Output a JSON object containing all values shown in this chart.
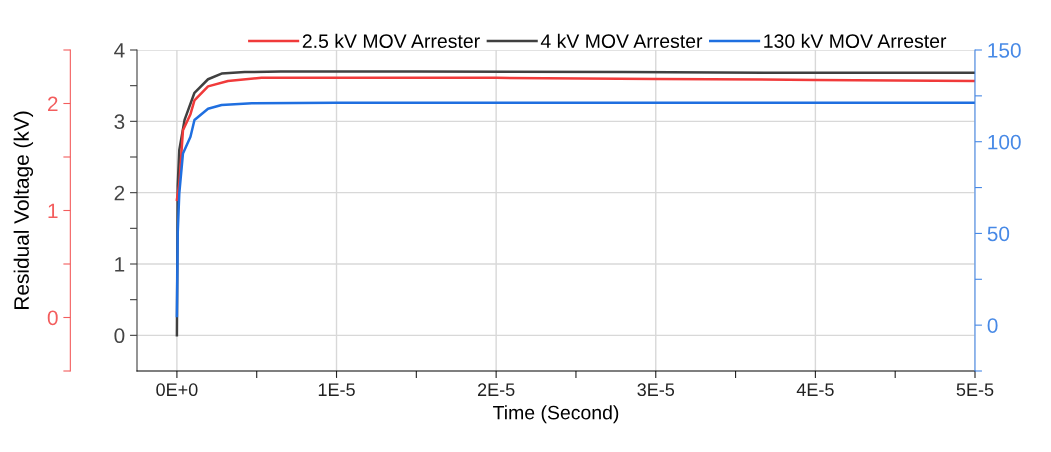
{
  "chart_data": {
    "type": "line",
    "xlabel": "Time (Second)",
    "y2label": "Residual Voltage (kV)",
    "xlim": [
      -2.5e-06,
      5e-05
    ],
    "xticks": [
      {
        "value": 0,
        "label": "0E+0"
      },
      {
        "value": 5e-06,
        "label": null
      },
      {
        "value": 1e-05,
        "label": "1E-5"
      },
      {
        "value": 1.5e-05,
        "label": null
      },
      {
        "value": 2e-05,
        "label": "2E-5"
      },
      {
        "value": 2.5e-05,
        "label": null
      },
      {
        "value": 3e-05,
        "label": "3E-5"
      },
      {
        "value": 3.5e-05,
        "label": null
      },
      {
        "value": 4e-05,
        "label": "4E-5"
      },
      {
        "value": 4.5e-05,
        "label": null
      },
      {
        "value": 5e-05,
        "label": "5E-5"
      }
    ],
    "ylim": [
      -0.5,
      4
    ],
    "yticks": [
      0,
      {
        "value": 0.5,
        "label": null
      },
      1,
      {
        "value": 1.5,
        "label": null
      },
      2,
      {
        "value": 2.5,
        "label": null
      },
      3,
      {
        "value": 3.5,
        "label": null
      },
      4
    ],
    "y2lim": [
      -0.5,
      2.5
    ],
    "y2ticks": [
      {
        "value": -0.5,
        "label": null
      },
      0,
      {
        "value": 0.5,
        "label": null
      },
      1,
      {
        "value": 1.5,
        "label": null
      },
      2,
      {
        "value": 2.5,
        "label": null
      }
    ],
    "y3lim": [
      -25,
      150
    ],
    "y3ticks": [
      {
        "value": -25,
        "label": null
      },
      0,
      {
        "value": 25,
        "label": null
      },
      50,
      {
        "value": 75,
        "label": null
      },
      100,
      {
        "value": 125,
        "label": null
      },
      150
    ],
    "grid": true,
    "legend": "top",
    "marker": "none",
    "line_style": "solid",
    "series": [
      {
        "name": "2.5 kV MOV Arrester",
        "color": "#f03a3a",
        "axis": "y2",
        "x": [
          0,
          1.5e-07,
          3.8e-07,
          8.5e-07,
          1.1e-06,
          1.95e-06,
          3.2e-06,
          5.3e-06,
          1e-05,
          2e-05,
          3e-05,
          4e-05,
          5e-05
        ],
        "values": [
          1.1,
          1.25,
          1.75,
          1.9,
          2.03,
          2.16,
          2.21,
          2.24,
          2.24,
          2.24,
          2.23,
          2.22,
          2.21
        ]
      },
      {
        "name": "4 kV MOV Arrester",
        "color": "#404040",
        "axis": "y",
        "x": [
          0,
          5e-08,
          1.5e-07,
          4.8e-07,
          1.1e-06,
          1.95e-06,
          2.8e-06,
          4.25e-06,
          6.5e-06,
          1.5e-05,
          2.8e-05,
          4e-05,
          5e-05
        ],
        "values": [
          0,
          2.1,
          2.6,
          3.02,
          3.4,
          3.59,
          3.67,
          3.69,
          3.7,
          3.7,
          3.69,
          3.68,
          3.68
        ]
      },
      {
        "name": "130 kV MOV Arrester",
        "color": "#1f6fe0",
        "axis": "y3",
        "x": [
          0,
          5e-08,
          1.5e-07,
          3.8e-07,
          8.5e-07,
          1.1e-06,
          1.95e-06,
          2.8e-06,
          4.7e-06,
          1e-05,
          2.5e-05,
          4e-05,
          5e-05
        ],
        "values": [
          5,
          50,
          72,
          93.6,
          102.7,
          111.8,
          118,
          120,
          121,
          121.3,
          121.3,
          121.3,
          121.3
        ]
      }
    ]
  }
}
